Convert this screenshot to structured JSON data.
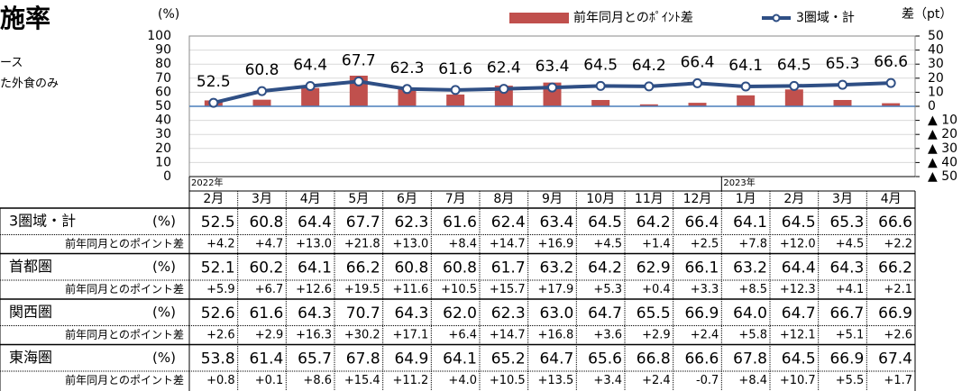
{
  "header": {
    "title": "施率",
    "notes": [
      "ース",
      "た外食のみ"
    ]
  },
  "chart_data": {
    "type": "bar_line",
    "y_axis_label": "(%)",
    "y2_axis_label": "差（pt）",
    "categories": [
      "2月",
      "3月",
      "4月",
      "5月",
      "6月",
      "7月",
      "8月",
      "9月",
      "10月",
      "11月",
      "12月",
      "1月",
      "2月",
      "3月",
      "4月"
    ],
    "year_markers": [
      "2022年",
      null,
      null,
      null,
      null,
      null,
      null,
      null,
      null,
      null,
      null,
      "2023年",
      null,
      null,
      null
    ],
    "ylim": [
      0,
      100
    ],
    "yticks": [
      0,
      10,
      20,
      30,
      40,
      50,
      60,
      70,
      80,
      90,
      100
    ],
    "y2lim": [
      -50,
      50
    ],
    "y2ticks": [
      {
        "value": -50,
        "label": "▲ 50"
      },
      {
        "value": -40,
        "label": "▲ 40"
      },
      {
        "value": -30,
        "label": "▲ 30"
      },
      {
        "value": -20,
        "label": "▲ 20"
      },
      {
        "value": -10,
        "label": "▲ 10"
      },
      0,
      10,
      20,
      30,
      40,
      50
    ],
    "grid": true,
    "legend": "top-right",
    "series": [
      {
        "name": "前年同月とのﾎﾟｲﾝﾄ差",
        "type": "bar",
        "axis": "y2",
        "color": "#c0504d",
        "values": [
          4.2,
          4.7,
          13.0,
          21.8,
          13.0,
          8.4,
          14.7,
          16.9,
          4.5,
          1.4,
          2.5,
          7.8,
          12.0,
          4.5,
          2.2
        ],
        "value_labels": [
          "+4.2",
          "+4.7",
          "+13.0",
          "+21.8",
          "+13.0",
          "+8.4",
          "+14.7",
          "+16.9",
          "+4.5",
          "+1.4",
          "+2.5",
          "+7.8",
          "+12.0",
          "+4.5",
          "+2.2"
        ]
      },
      {
        "name": "3圏域・計",
        "type": "line",
        "color": "#2f4f85",
        "values": [
          52.5,
          60.8,
          64.4,
          67.7,
          62.3,
          61.6,
          62.4,
          63.4,
          64.5,
          64.2,
          66.4,
          64.1,
          64.5,
          65.3,
          66.6
        ],
        "value_labels": [
          "52.5",
          "60.8",
          "64.4",
          "67.7",
          "62.3",
          "61.6",
          "62.4",
          "63.4",
          "64.5",
          "64.2",
          "66.4",
          "64.1",
          "64.5",
          "65.3",
          "66.6"
        ]
      }
    ]
  },
  "table": {
    "groups": [
      {
        "name": "3圏域・計",
        "unit": "(%)",
        "diff_label": "前年同月とのポイント差"
      },
      {
        "name": "首都圏",
        "unit": "(%)",
        "diff_label": "前年同月とのポイント差",
        "values": [
          "52.1",
          "60.2",
          "64.1",
          "66.2",
          "60.8",
          "60.8",
          "61.7",
          "63.2",
          "64.2",
          "62.9",
          "66.1",
          "63.2",
          "64.4",
          "64.3",
          "66.2"
        ],
        "diffs": [
          "+5.9",
          "+6.7",
          "+12.6",
          "+19.5",
          "+11.6",
          "+10.5",
          "+15.7",
          "+17.9",
          "+5.3",
          "+0.4",
          "+3.3",
          "+8.5",
          "+12.3",
          "+4.1",
          "+2.1"
        ]
      },
      {
        "name": "関西圏",
        "unit": "(%)",
        "diff_label": "前年同月とのポイント差",
        "values": [
          "52.6",
          "61.6",
          "64.3",
          "70.7",
          "64.3",
          "62.0",
          "62.3",
          "63.0",
          "64.7",
          "65.5",
          "66.9",
          "64.0",
          "64.7",
          "66.7",
          "66.9"
        ],
        "diffs": [
          "+2.6",
          "+2.9",
          "+16.3",
          "+30.2",
          "+17.1",
          "+6.4",
          "+14.7",
          "+16.8",
          "+3.6",
          "+2.9",
          "+2.4",
          "+5.8",
          "+12.1",
          "+5.1",
          "+2.6"
        ]
      },
      {
        "name": "東海圏",
        "unit": "(%)",
        "diff_label": "前年同月とのポイント差",
        "values": [
          "53.8",
          "61.4",
          "65.7",
          "67.8",
          "64.9",
          "64.1",
          "65.2",
          "64.7",
          "65.6",
          "66.8",
          "66.6",
          "67.8",
          "64.5",
          "66.9",
          "67.4"
        ],
        "diffs": [
          "+0.8",
          "+0.1",
          "+8.6",
          "+15.4",
          "+11.2",
          "+4.0",
          "+10.5",
          "+13.5",
          "+3.4",
          "+2.4",
          "-0.7",
          "+8.4",
          "+10.7",
          "+5.5",
          "+1.7"
        ]
      }
    ]
  }
}
